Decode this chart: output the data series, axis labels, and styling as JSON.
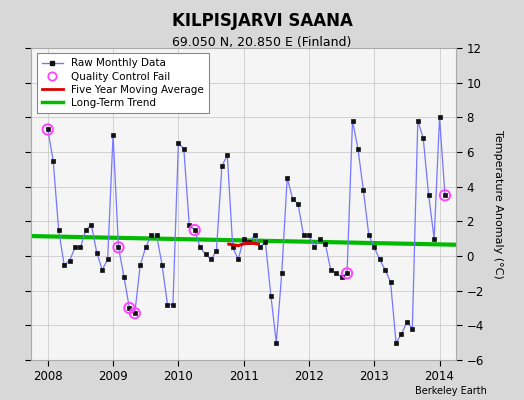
{
  "title": "KILPISJARVI SAANA",
  "subtitle": "69.050 N, 20.850 E (Finland)",
  "ylabel": "Temperature Anomaly (°C)",
  "credit": "Berkeley Earth",
  "ylim": [
    -6,
    12
  ],
  "yticks": [
    -6,
    -4,
    -2,
    0,
    2,
    4,
    6,
    8,
    10,
    12
  ],
  "xlim": [
    2007.75,
    2014.25
  ],
  "xticks": [
    2008,
    2009,
    2010,
    2011,
    2012,
    2013,
    2014
  ],
  "plot_bg": "#f5f5f5",
  "outer_bg": "#d8d8d8",
  "raw_color": "#7777ff",
  "raw_marker_color": "#111111",
  "qc_color": "#ff44ff",
  "ma_color": "#dd0000",
  "trend_color": "#00bb00",
  "raw_times": [
    2008.0,
    2008.083,
    2008.167,
    2008.25,
    2008.333,
    2008.417,
    2008.5,
    2008.583,
    2008.667,
    2008.75,
    2008.833,
    2008.917,
    2009.0,
    2009.083,
    2009.167,
    2009.25,
    2009.333,
    2009.417,
    2009.5,
    2009.583,
    2009.667,
    2009.75,
    2009.833,
    2009.917,
    2010.0,
    2010.083,
    2010.167,
    2010.25,
    2010.333,
    2010.417,
    2010.5,
    2010.583,
    2010.667,
    2010.75,
    2010.833,
    2010.917,
    2011.0,
    2011.083,
    2011.167,
    2011.25,
    2011.333,
    2011.417,
    2011.5,
    2011.583,
    2011.667,
    2011.75,
    2011.833,
    2011.917,
    2012.0,
    2012.083,
    2012.167,
    2012.25,
    2012.333,
    2012.417,
    2012.5,
    2012.583,
    2012.667,
    2012.75,
    2012.833,
    2012.917,
    2013.0,
    2013.083,
    2013.167,
    2013.25,
    2013.333,
    2013.417,
    2013.5,
    2013.583,
    2013.667,
    2013.75,
    2013.833,
    2013.917,
    2014.0,
    2014.083
  ],
  "raw_data": [
    7.3,
    5.5,
    1.5,
    -0.5,
    -0.3,
    0.5,
    0.5,
    1.5,
    1.8,
    0.2,
    -0.8,
    -0.2,
    7.0,
    0.5,
    -1.2,
    -3.0,
    -3.3,
    -0.5,
    0.5,
    1.2,
    1.2,
    -0.5,
    -2.8,
    -2.8,
    6.5,
    6.2,
    1.8,
    1.5,
    0.5,
    0.1,
    -0.2,
    0.3,
    5.2,
    5.8,
    0.5,
    -0.2,
    1.0,
    0.8,
    1.2,
    0.5,
    0.8,
    -2.3,
    -5.0,
    -1.0,
    4.5,
    3.3,
    3.0,
    1.2,
    1.2,
    0.5,
    1.0,
    0.7,
    -0.8,
    -1.0,
    -1.2,
    -1.0,
    7.8,
    6.2,
    3.8,
    1.2,
    0.5,
    -0.2,
    -0.8,
    -1.5,
    -5.0,
    -4.5,
    -3.8,
    -4.2,
    7.8,
    6.8,
    3.5,
    1.0,
    8.0,
    3.5
  ],
  "qc_fail_times": [
    2008.0,
    2009.083,
    2009.25,
    2009.333,
    2010.25,
    2012.583,
    2014.083
  ],
  "qc_fail_values": [
    7.3,
    0.5,
    -3.0,
    -3.3,
    1.5,
    -1.0,
    3.5
  ],
  "ma_times": [
    2010.75,
    2010.833,
    2010.917,
    2011.0,
    2011.083,
    2011.167,
    2011.25
  ],
  "ma_values": [
    0.7,
    0.65,
    0.6,
    0.7,
    0.75,
    0.72,
    0.68
  ],
  "trend_times": [
    2007.75,
    2014.25
  ],
  "trend_values": [
    1.15,
    0.65
  ]
}
